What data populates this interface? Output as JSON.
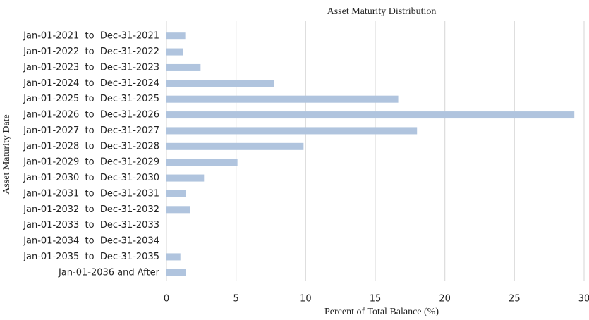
{
  "chart_data": {
    "type": "barh",
    "title": "Asset Maturity Distribution",
    "xlabel": "Percent of Total Balance (%)",
    "ylabel": "Asset Maturity Date",
    "categories": [
      "Jan-01-2021  to  Dec-31-2021",
      "Jan-01-2022  to  Dec-31-2022",
      "Jan-01-2023  to  Dec-31-2023",
      "Jan-01-2024  to  Dec-31-2024",
      "Jan-01-2025  to  Dec-31-2025",
      "Jan-01-2026  to  Dec-31-2026",
      "Jan-01-2027  to  Dec-31-2027",
      "Jan-01-2028  to  Dec-31-2028",
      "Jan-01-2029  to  Dec-31-2029",
      "Jan-01-2030  to  Dec-31-2030",
      "Jan-01-2031  to  Dec-31-2031",
      "Jan-01-2032  to  Dec-31-2032",
      "Jan-01-2033  to  Dec-31-2033",
      "Jan-01-2034  to  Dec-31-2034",
      "Jan-01-2035  to  Dec-31-2035",
      "Jan-01-2036 and After"
    ],
    "values": [
      1.35,
      1.2,
      2.45,
      7.75,
      16.65,
      29.3,
      18.0,
      9.85,
      5.1,
      2.7,
      1.4,
      1.7,
      0,
      0,
      1.0,
      1.4
    ],
    "color": "#b0c4de",
    "xlim": [
      0,
      30
    ],
    "xticks": [
      0,
      5,
      10,
      15,
      20,
      25,
      30
    ],
    "grid": true
  }
}
